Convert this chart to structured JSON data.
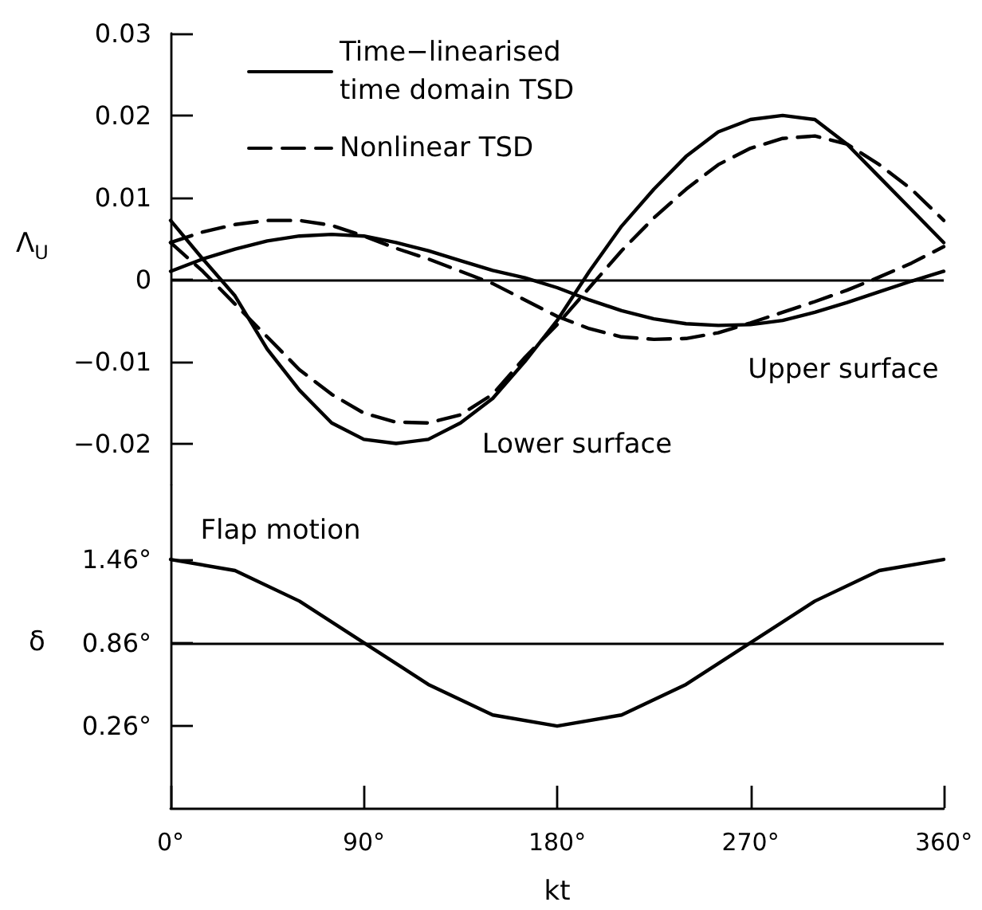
{
  "chart_data": [
    {
      "type": "line",
      "ylabel": "Λ$_{U}$",
      "legend": "top left",
      "grid": false,
      "marker": "none",
      "tick_labels": "y",
      "xlim": [
        0,
        360
      ],
      "ylim": [
        -0.025,
        0.03
      ],
      "yticks": [
        {
          "value": -0.02,
          "label": "−0.02"
        },
        {
          "value": -0.01,
          "label": "−0.01"
        },
        0,
        0.01,
        0.02,
        0.03
      ],
      "x": [
        0,
        15,
        30,
        45,
        60,
        75,
        90,
        105,
        120,
        135,
        150,
        165,
        180,
        195,
        210,
        225,
        240,
        255,
        270,
        285,
        300,
        315,
        330,
        345,
        360
      ],
      "series": [
        {
          "name": "Time−linearised time domain TSD",
          "color": "#000000",
          "line_style": "solid",
          "values": [
            0.0072,
            0.0025,
            -0.002,
            -0.0085,
            -0.0135,
            -0.0175,
            -0.0195,
            -0.02,
            -0.0195,
            -0.0175,
            -0.0145,
            -0.01,
            -0.005,
            0.001,
            0.0065,
            0.011,
            0.015,
            0.018,
            0.0195,
            0.02,
            0.0195,
            0.0165,
            0.0125,
            0.0085,
            0.0045
          ]
        },
        {
          "name": "Nonlinear TSD",
          "color": "#000000",
          "line_style": "dashed",
          "values": [
            0.0045,
            0.001,
            -0.003,
            -0.007,
            -0.011,
            -0.014,
            -0.0163,
            -0.0174,
            -0.0175,
            -0.0165,
            -0.014,
            -0.0095,
            -0.0055,
            -0.001,
            0.0035,
            0.0075,
            0.011,
            0.014,
            0.016,
            0.0172,
            0.0175,
            0.0165,
            0.014,
            0.011,
            0.0072
          ]
        },
        {
          "color": "#000000",
          "line_style": "solid",
          "values": [
            0.001,
            0.0025,
            0.0037,
            0.0047,
            0.0053,
            0.0055,
            0.0053,
            0.0045,
            0.0035,
            0.0023,
            0.0011,
            0.0002,
            -0.001,
            -0.0025,
            -0.0038,
            -0.0048,
            -0.0054,
            -0.0056,
            -0.0055,
            -0.005,
            -0.004,
            -0.0028,
            -0.0015,
            -0.0002,
            0.001
          ]
        },
        {
          "color": "#000000",
          "line_style": "dashed",
          "values": [
            0.0045,
            0.0058,
            0.0067,
            0.0072,
            0.0072,
            0.0066,
            0.0053,
            0.0038,
            0.0025,
            0.001,
            -0.0005,
            -0.0025,
            -0.0045,
            -0.006,
            -0.007,
            -0.0073,
            -0.0072,
            -0.0065,
            -0.0053,
            -0.004,
            -0.0027,
            -0.0013,
            0.0003,
            0.002,
            0.004
          ]
        }
      ],
      "ref_lines": [
        {
          "axis": "y",
          "value": 0,
          "color": "#000000"
        }
      ],
      "annotations": [
        "Lower surface",
        "Upper surface"
      ]
    },
    {
      "type": "line",
      "ylabel": "δ",
      "xlabel": "kt",
      "legend": false,
      "grid": false,
      "marker": "none",
      "xlim": [
        0,
        360
      ],
      "ylim": [
        -0.33,
        2.0
      ],
      "xticks": [
        {
          "value": 0,
          "label": "0°"
        },
        {
          "value": 90,
          "label": "90°"
        },
        {
          "value": 180,
          "label": "180°"
        },
        {
          "value": 270,
          "label": "270°"
        },
        {
          "value": 360,
          "label": "360°"
        }
      ],
      "yticks": [
        {
          "value": 0.26,
          "label": "0.26°"
        },
        {
          "value": 0.86,
          "label": "0.86°"
        },
        {
          "value": 1.46,
          "label": "1.46°"
        }
      ],
      "x": [
        0,
        30,
        60,
        90,
        120,
        150,
        180,
        210,
        240,
        270,
        300,
        330,
        360
      ],
      "series": [
        {
          "color": "#000000",
          "line_style": "solid",
          "values": [
            1.46,
            1.38,
            1.16,
            0.86,
            0.56,
            0.34,
            0.26,
            0.34,
            0.56,
            0.86,
            1.16,
            1.38,
            1.46
          ]
        }
      ],
      "ref_lines": [
        {
          "axis": "y",
          "value": 0.86,
          "color": "#000000"
        }
      ],
      "annotations": [
        "Flap motion"
      ]
    }
  ]
}
